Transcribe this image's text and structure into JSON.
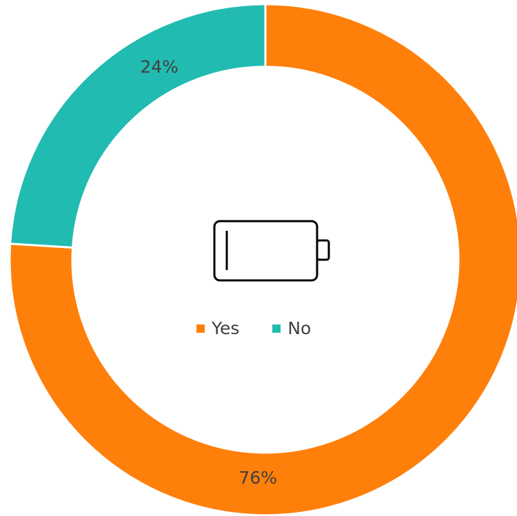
{
  "chart_data": {
    "type": "pie",
    "subtype": "donut",
    "categories": [
      "Yes",
      "No"
    ],
    "values": [
      76,
      24
    ],
    "data_labels": [
      "76%",
      "24%"
    ],
    "colors": [
      "#FF7F0B",
      "#22BBB1"
    ],
    "legend": {
      "placement": "center",
      "entries": [
        "Yes",
        "No"
      ]
    },
    "center_icon": "battery-low-icon"
  }
}
